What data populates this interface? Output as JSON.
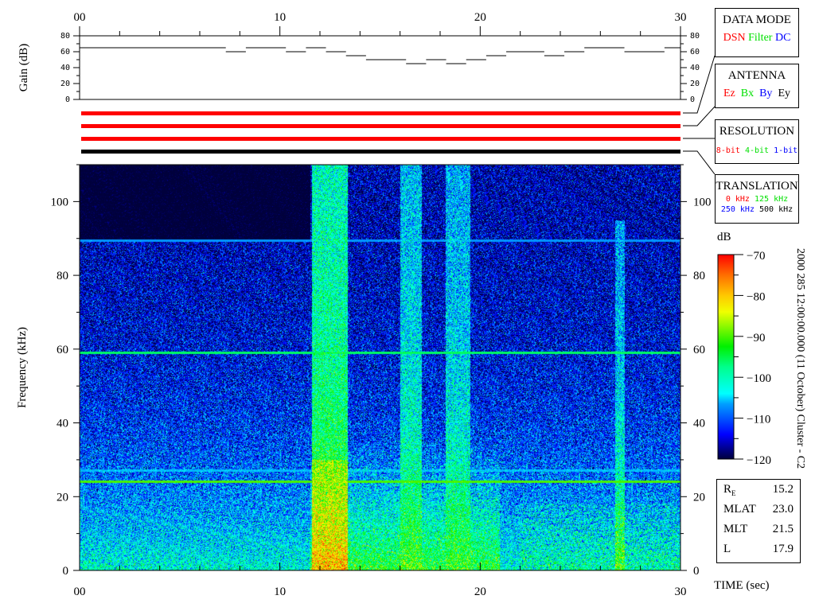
{
  "chart_data": [
    {
      "type": "line",
      "ylabel": "Gain (dB)",
      "xlim": [
        0,
        30
      ],
      "ylim": [
        0,
        80
      ],
      "yticks": [
        0,
        20,
        40,
        60,
        80
      ],
      "xticks": [
        "00",
        "10",
        "20",
        "30"
      ],
      "steps": [
        {
          "t0": 0,
          "t1": 7.3,
          "gain": 65
        },
        {
          "t0": 7.3,
          "t1": 8.3,
          "gain": 60
        },
        {
          "t0": 8.3,
          "t1": 10.3,
          "gain": 65
        },
        {
          "t0": 10.3,
          "t1": 11.3,
          "gain": 60
        },
        {
          "t0": 11.3,
          "t1": 12.3,
          "gain": 65
        },
        {
          "t0": 12.3,
          "t1": 13.3,
          "gain": 60
        },
        {
          "t0": 13.3,
          "t1": 14.3,
          "gain": 55
        },
        {
          "t0": 14.3,
          "t1": 16.3,
          "gain": 50
        },
        {
          "t0": 16.3,
          "t1": 17.3,
          "gain": 45
        },
        {
          "t0": 17.3,
          "t1": 18.3,
          "gain": 50
        },
        {
          "t0": 18.3,
          "t1": 19.3,
          "gain": 45
        },
        {
          "t0": 19.3,
          "t1": 20.3,
          "gain": 50
        },
        {
          "t0": 20.3,
          "t1": 21.3,
          "gain": 55
        },
        {
          "t0": 21.3,
          "t1": 23.2,
          "gain": 60
        },
        {
          "t0": 23.2,
          "t1": 24.2,
          "gain": 55
        },
        {
          "t0": 24.2,
          "t1": 25.2,
          "gain": 60
        },
        {
          "t0": 25.2,
          "t1": 27.2,
          "gain": 65
        },
        {
          "t0": 27.2,
          "t1": 29.2,
          "gain": 60
        },
        {
          "t0": 29.2,
          "t1": 30,
          "gain": 65
        }
      ]
    },
    {
      "type": "heatmap",
      "xlabel": "TIME (sec)",
      "ylabel": "Frequency (kHz)",
      "xlim": [
        0,
        30
      ],
      "ylim": [
        0,
        110
      ],
      "xticks": [
        "00",
        "10",
        "20",
        "30"
      ],
      "yticks": [
        0,
        20,
        40,
        60,
        80,
        100
      ],
      "colorbar": {
        "unit": "dB",
        "range": [
          -120,
          -70
        ],
        "ticks": [
          "-70",
          "-80",
          "-90",
          "-100",
          "-110",
          "-120"
        ]
      },
      "horizontal_lines_khz": [
        89.5,
        59,
        27,
        24
      ],
      "bright_bands_sec": [
        [
          11.6,
          13.4
        ],
        [
          16.0,
          17.1
        ],
        [
          18.3,
          19.5
        ]
      ]
    }
  ],
  "status_bars": [
    {
      "color": "#ff0000"
    },
    {
      "color": "#ff0000"
    },
    {
      "color": "#ff0000"
    },
    {
      "color": "#000000"
    }
  ],
  "legend": {
    "data_mode": {
      "title": "DATA MODE",
      "items": [
        "DSN",
        "Filter",
        "DC"
      ]
    },
    "antenna": {
      "title": "ANTENNA",
      "items": [
        "Ez",
        "Bx",
        "By",
        "Ey"
      ]
    },
    "resolution": {
      "title": "RESOLUTION",
      "items": [
        "8-bit",
        "4-bit",
        "1-bit"
      ]
    },
    "translation": {
      "title": "TRANSLATION",
      "items": [
        "0 kHz",
        "125 kHz",
        "250 kHz",
        "500 kHz"
      ]
    }
  },
  "caption": "2000 285 12:00:00.000 (11 October)    Cluster - C2",
  "position": [
    {
      "label": "R",
      "sub": "E",
      "value": "15.2"
    },
    {
      "label": "MLAT",
      "value": "23.0"
    },
    {
      "label": "MLT",
      "value": "21.5"
    },
    {
      "label": "L",
      "value": "17.9"
    }
  ],
  "colors": {
    "red": "#ff0000",
    "green": "#00e000",
    "blue": "#0000ff",
    "black": "#000000"
  }
}
